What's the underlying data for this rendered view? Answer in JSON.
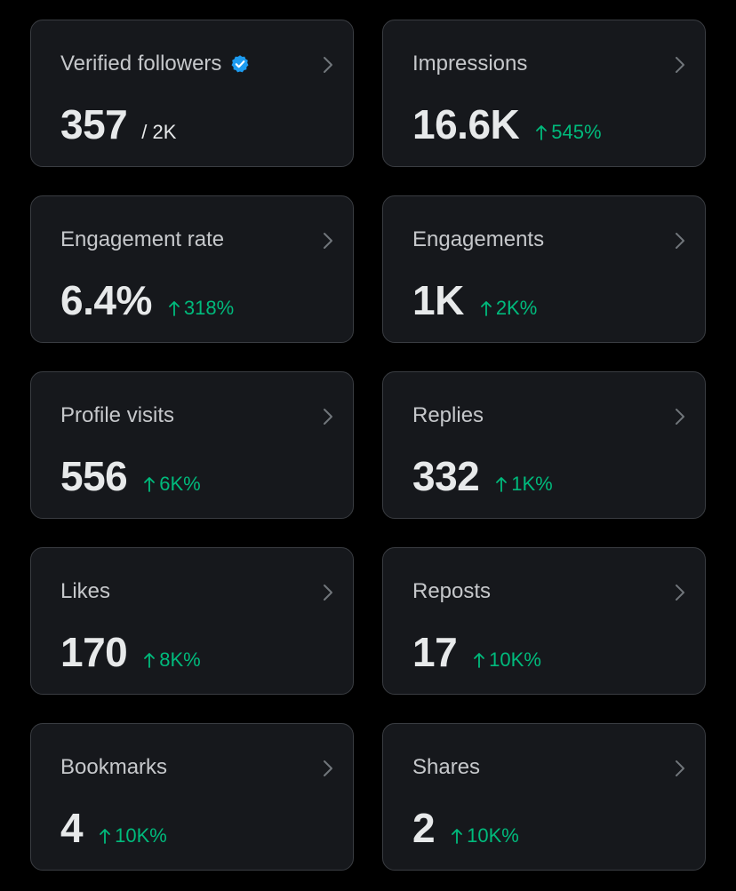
{
  "cards": [
    {
      "label": "Verified followers",
      "value": "357",
      "sub": "/ 2K",
      "verified": true
    },
    {
      "label": "Impressions",
      "value": "16.6K",
      "change": "545%"
    },
    {
      "label": "Engagement rate",
      "value": "6.4%",
      "change": "318%"
    },
    {
      "label": "Engagements",
      "value": "1K",
      "change": "2K%"
    },
    {
      "label": "Profile visits",
      "value": "556",
      "change": "6K%"
    },
    {
      "label": "Replies",
      "value": "332",
      "change": "1K%"
    },
    {
      "label": "Likes",
      "value": "170",
      "change": "8K%"
    },
    {
      "label": "Reposts",
      "value": "17",
      "change": "10K%"
    },
    {
      "label": "Bookmarks",
      "value": "4",
      "change": "10K%"
    },
    {
      "label": "Shares",
      "value": "2",
      "change": "10K%"
    }
  ],
  "colors": {
    "background": "#000000",
    "card": "#16181c",
    "card_border": "#3a3d42",
    "text_primary": "#e7e9ea",
    "text_label": "#c6c8cb",
    "positive": "#00ba7c",
    "verified": "#1d9bf0"
  },
  "icons": {
    "verified": "verified-badge-icon",
    "chevron": "chevron-right-icon",
    "arrow": "arrow-up-icon"
  }
}
